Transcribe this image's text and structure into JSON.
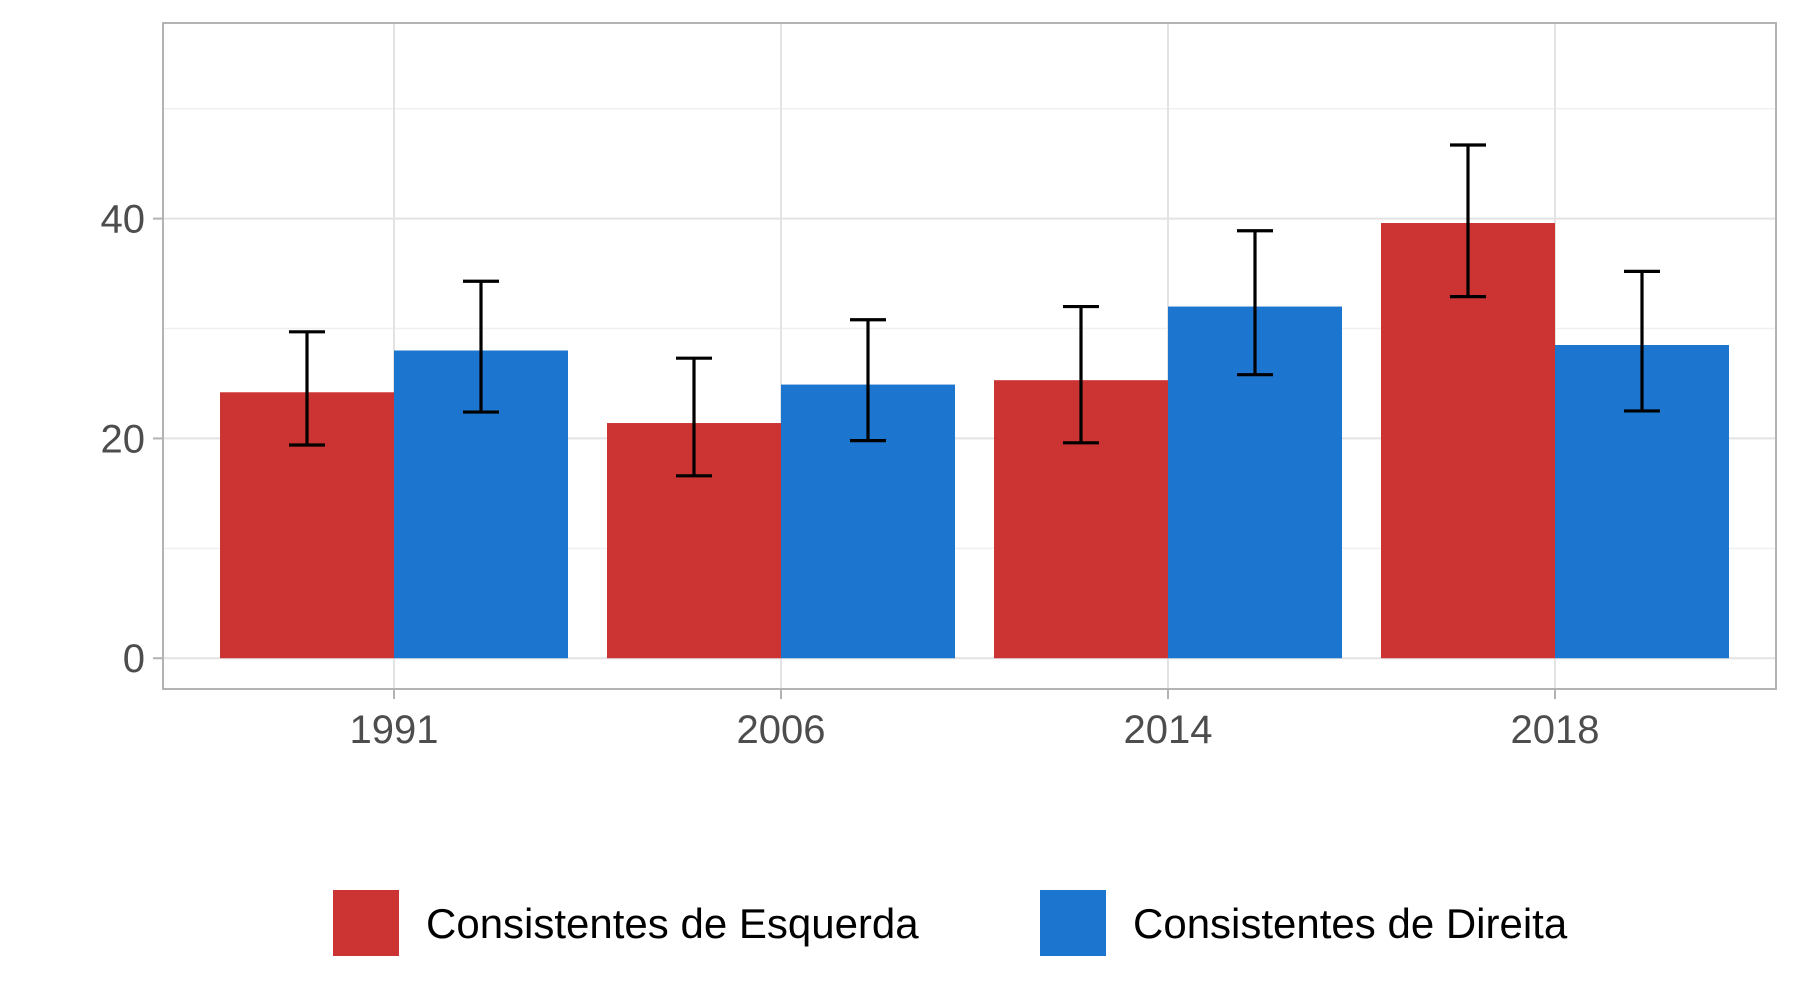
{
  "chart_data": {
    "type": "bar",
    "title": "",
    "xlabel": "",
    "ylabel": "",
    "categories": [
      "1991",
      "2006",
      "2014",
      "2018"
    ],
    "ylim": [
      -2.8,
      57.8
    ],
    "yticks": [
      0,
      20,
      40
    ],
    "y_minor_ticks": [
      10,
      30,
      50
    ],
    "grid": true,
    "legend_position": "bottom",
    "series": [
      {
        "name": "Consistentes de Esquerda",
        "color": "#cc3333",
        "values": [
          24.2,
          21.4,
          25.3,
          39.6
        ],
        "error_low": [
          19.4,
          16.6,
          19.6,
          32.9
        ],
        "error_high": [
          29.7,
          27.3,
          32.0,
          46.7
        ]
      },
      {
        "name": "Consistentes de Direita",
        "color": "#1c75cf",
        "values": [
          28.0,
          24.9,
          32.0,
          28.5
        ],
        "error_low": [
          22.4,
          19.8,
          25.8,
          22.5
        ],
        "error_high": [
          34.3,
          30.8,
          38.9,
          35.2
        ]
      }
    ]
  }
}
